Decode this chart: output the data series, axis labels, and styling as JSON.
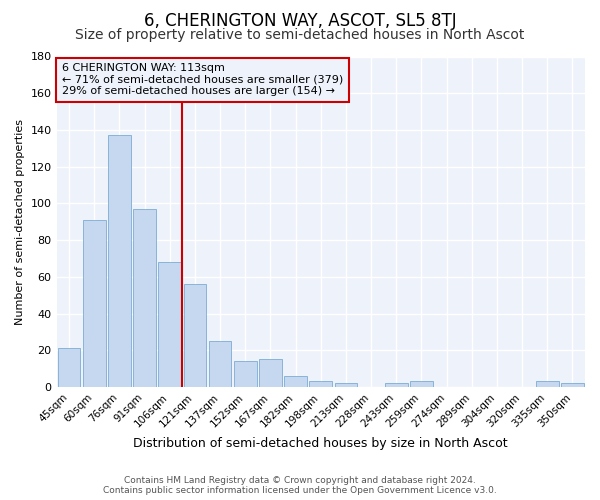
{
  "title": "6, CHERINGTON WAY, ASCOT, SL5 8TJ",
  "subtitle": "Size of property relative to semi-detached houses in North Ascot",
  "xlabel": "Distribution of semi-detached houses by size in North Ascot",
  "ylabel": "Number of semi-detached properties",
  "bar_labels": [
    "45sqm",
    "60sqm",
    "76sqm",
    "91sqm",
    "106sqm",
    "121sqm",
    "137sqm",
    "152sqm",
    "167sqm",
    "182sqm",
    "198sqm",
    "213sqm",
    "228sqm",
    "243sqm",
    "259sqm",
    "274sqm",
    "289sqm",
    "304sqm",
    "320sqm",
    "335sqm",
    "350sqm"
  ],
  "bar_values": [
    21,
    91,
    137,
    97,
    68,
    56,
    25,
    14,
    15,
    6,
    3,
    2,
    0,
    2,
    3,
    0,
    0,
    0,
    0,
    3,
    2
  ],
  "bar_color": "#c5d8f0",
  "bar_edgecolor": "#7badd4",
  "vline_color": "#cc0000",
  "ylim": [
    0,
    180
  ],
  "yticks": [
    0,
    20,
    40,
    60,
    80,
    100,
    120,
    140,
    160,
    180
  ],
  "ann_title": "6 CHERINGTON WAY: 113sqm",
  "ann_line2": "← 71% of semi-detached houses are smaller (379)",
  "ann_line3": "29% of semi-detached houses are larger (154) →",
  "ann_box_color": "#cc0000",
  "footer_line1": "Contains HM Land Registry data © Crown copyright and database right 2024.",
  "footer_line2": "Contains public sector information licensed under the Open Government Licence v3.0.",
  "fig_bg": "#ffffff",
  "plot_bg": "#eef2fb",
  "grid_color": "#ffffff",
  "title_fontsize": 12,
  "subtitle_fontsize": 10
}
